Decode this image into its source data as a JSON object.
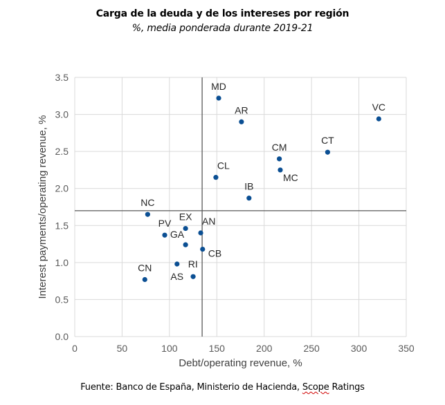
{
  "header": {
    "title": "Carga de la deuda y de los intereses por región",
    "subtitle": "%, media ponderada durante 2019-21"
  },
  "footer": {
    "source_prefix": "Fuente: Banco de España, Ministerio de Hacienda, ",
    "source_marked": "Scope",
    "source_suffix": " Ratings"
  },
  "chart_data": {
    "type": "scatter",
    "title": "Carga de la deuda y de los intereses por región",
    "subtitle": "%, media ponderada durante 2019-21",
    "xlabel": "Debt/operating revenue, %",
    "ylabel": "Interest payments/operating revenue, %",
    "xlim": [
      0,
      350
    ],
    "ylim": [
      0,
      3.5
    ],
    "xticks": [
      0,
      50,
      100,
      150,
      200,
      250,
      300,
      350
    ],
    "yticks": [
      0.0,
      0.5,
      1.0,
      1.5,
      2.0,
      2.5,
      3.0,
      3.5
    ],
    "ytick_labels": [
      "0.0",
      "0.5",
      "1.0",
      "1.5",
      "2.0",
      "2.5",
      "3.0",
      "3.5"
    ],
    "xtick_labels": [
      "0",
      "50",
      "100",
      "150",
      "200",
      "250",
      "300",
      "350"
    ],
    "grid": true,
    "legend": "none",
    "marker_color": "#0b4f93",
    "reference_lines": {
      "x": 134.5,
      "y": 1.7,
      "color": "#595959"
    },
    "points": [
      {
        "label": "MD",
        "x": 152,
        "y": 3.22,
        "label_pos": "top"
      },
      {
        "label": "AR",
        "x": 176,
        "y": 2.9,
        "label_pos": "top"
      },
      {
        "label": "VC",
        "x": 321,
        "y": 2.94,
        "label_pos": "top"
      },
      {
        "label": "CT",
        "x": 267,
        "y": 2.49,
        "label_pos": "top"
      },
      {
        "label": "CM",
        "x": 216,
        "y": 2.4,
        "label_pos": "top"
      },
      {
        "label": "MC",
        "x": 217,
        "y": 2.25,
        "label_pos": "bottom-right"
      },
      {
        "label": "CL",
        "x": 149,
        "y": 2.15,
        "label_pos": "top-right"
      },
      {
        "label": "IB",
        "x": 184,
        "y": 1.87,
        "label_pos": "top"
      },
      {
        "label": "NC",
        "x": 77,
        "y": 1.65,
        "label_pos": "top"
      },
      {
        "label": "EX",
        "x": 117,
        "y": 1.46,
        "label_pos": "top"
      },
      {
        "label": "AN",
        "x": 133,
        "y": 1.4,
        "label_pos": "top-right"
      },
      {
        "label": "PV",
        "x": 95,
        "y": 1.37,
        "label_pos": "top"
      },
      {
        "label": "GA",
        "x": 117,
        "y": 1.24,
        "label_pos": "top-left"
      },
      {
        "label": "CB",
        "x": 135,
        "y": 1.18,
        "label_pos": "right"
      },
      {
        "label": "RI",
        "x": 108,
        "y": 0.98,
        "label_pos": "right-offset"
      },
      {
        "label": "AS",
        "x": 125,
        "y": 0.81,
        "label_pos": "left"
      },
      {
        "label": "CN",
        "x": 74,
        "y": 0.77,
        "label_pos": "top"
      }
    ]
  }
}
